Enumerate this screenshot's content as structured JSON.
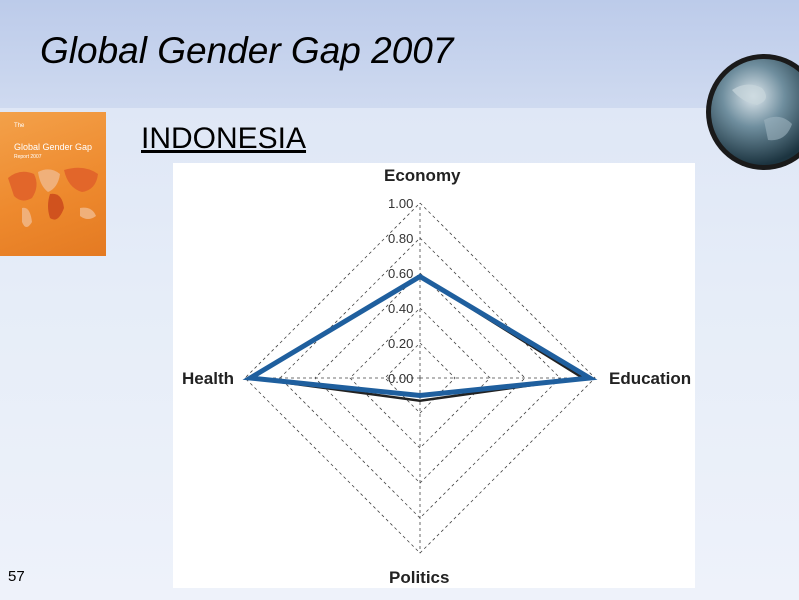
{
  "slide": {
    "title": "Global Gender Gap 2007",
    "country": "INDONESIA",
    "number": "57"
  },
  "cover": {
    "line1": "The",
    "line2": "Global Gender Gap",
    "line3": "Report 2007"
  },
  "colors": {
    "country_line": "#1f5f9e",
    "average_line": "#222222",
    "grid": "#444444"
  },
  "chart_data": {
    "type": "radar",
    "axes": [
      "Economy",
      "Education",
      "Politics",
      "Health"
    ],
    "ticks": [
      "1.00",
      "0.80",
      "0.60",
      "0.40",
      "0.20",
      "0.00"
    ],
    "range": [
      0,
      1
    ],
    "series": [
      {
        "values": [
          0.58,
          0.97,
          0.1,
          0.97
        ],
        "color": "#1f5f9e"
      },
      {
        "values": [
          0.58,
          0.93,
          0.13,
          0.97
        ],
        "color": "#222222"
      }
    ]
  }
}
